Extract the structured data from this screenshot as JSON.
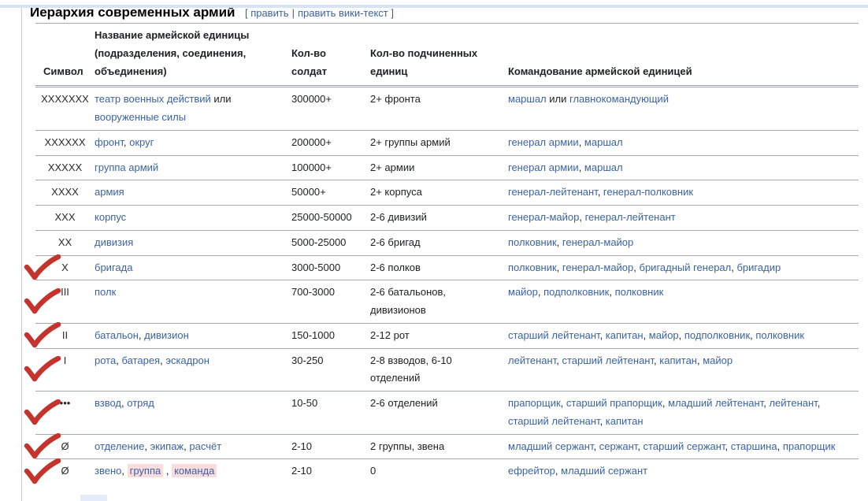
{
  "page": {
    "title": "Иерархия современных армий",
    "edit": {
      "open": "[",
      "edit_label": "править",
      "separator": "|",
      "edit_source_label": "править вики-текст",
      "close": "]"
    }
  },
  "colors": {
    "link_blue": "#3b63a5",
    "checkmark_red": "#c4342c",
    "highlight_pink": "#fadcdc",
    "row_border": "#a2a9b1",
    "top_strip_blue": "#d8e4f1"
  },
  "table": {
    "headers": {
      "symbol": "Символ",
      "name": "Название армейской единицы (подразделения, соединения, объединения)",
      "soldiers": "Кол-во солдат",
      "subunits": "Кол-во подчиненных единиц",
      "command": "Командование армейской единицей"
    },
    "rows": [
      {
        "symbol": "XXXXXXX",
        "checked": false,
        "name": [
          {
            "t": "l",
            "s": "театр военных действий"
          },
          {
            "t": "p",
            "s": " или "
          },
          {
            "t": "l",
            "s": "вооруженные силы"
          }
        ],
        "soldiers": "300000+",
        "subunits": "2+ фронта",
        "command": [
          {
            "t": "l",
            "s": "маршал"
          },
          {
            "t": "p",
            "s": " или "
          },
          {
            "t": "l",
            "s": "главнокомандующий"
          }
        ]
      },
      {
        "symbol": "XXXXXX",
        "checked": false,
        "name": [
          {
            "t": "l",
            "s": "фронт"
          },
          {
            "t": "p",
            "s": ", "
          },
          {
            "t": "l",
            "s": "округ"
          }
        ],
        "soldiers": "200000+",
        "subunits": "2+ группы армий",
        "command": [
          {
            "t": "l",
            "s": "генерал армии"
          },
          {
            "t": "p",
            "s": ", "
          },
          {
            "t": "l",
            "s": "маршал"
          }
        ]
      },
      {
        "symbol": "XXXXX",
        "checked": false,
        "name": [
          {
            "t": "l",
            "s": "группа армий"
          }
        ],
        "soldiers": "100000+",
        "subunits": "2+ армии",
        "command": [
          {
            "t": "l",
            "s": "генерал армии"
          },
          {
            "t": "p",
            "s": ", "
          },
          {
            "t": "l",
            "s": "маршал"
          }
        ]
      },
      {
        "symbol": "XXXX",
        "checked": false,
        "name": [
          {
            "t": "l",
            "s": "армия"
          }
        ],
        "soldiers": "50000+",
        "subunits": "2+ корпуса",
        "command": [
          {
            "t": "l",
            "s": "генерал-лейтенант"
          },
          {
            "t": "p",
            "s": ", "
          },
          {
            "t": "l",
            "s": "генерал-полковник"
          }
        ]
      },
      {
        "symbol": "XXX",
        "checked": false,
        "name": [
          {
            "t": "l",
            "s": "корпус"
          }
        ],
        "soldiers": "25000-50000",
        "subunits": "2-6 дивизий",
        "command": [
          {
            "t": "l",
            "s": "генерал-майор"
          },
          {
            "t": "p",
            "s": ", "
          },
          {
            "t": "l",
            "s": "генерал-лейтенант"
          }
        ]
      },
      {
        "symbol": "XX",
        "checked": false,
        "name": [
          {
            "t": "l",
            "s": "дивизия"
          }
        ],
        "soldiers": "5000-25000",
        "subunits": "2-6 бригад",
        "command": [
          {
            "t": "l",
            "s": "полковник"
          },
          {
            "t": "p",
            "s": ", "
          },
          {
            "t": "l",
            "s": "генерал-майор"
          }
        ]
      },
      {
        "symbol": "X",
        "checked": true,
        "name": [
          {
            "t": "l",
            "s": "бригада"
          }
        ],
        "soldiers": "3000-5000",
        "subunits": "2-6 полков",
        "command": [
          {
            "t": "l",
            "s": "полковник"
          },
          {
            "t": "p",
            "s": ", "
          },
          {
            "t": "l",
            "s": "генерал-майор"
          },
          {
            "t": "p",
            "s": ", "
          },
          {
            "t": "l",
            "s": "бригадный генерал"
          },
          {
            "t": "p",
            "s": ", "
          },
          {
            "t": "l",
            "s": "бригадир"
          }
        ]
      },
      {
        "symbol": "III",
        "checked": true,
        "name": [
          {
            "t": "l",
            "s": "полк"
          }
        ],
        "soldiers": "700-3000",
        "subunits": "2-6 батальонов, дивизионов",
        "command": [
          {
            "t": "l",
            "s": "майор"
          },
          {
            "t": "p",
            "s": ", "
          },
          {
            "t": "l",
            "s": "подполковник"
          },
          {
            "t": "p",
            "s": ", "
          },
          {
            "t": "l",
            "s": "полковник"
          }
        ]
      },
      {
        "symbol": "II",
        "checked": true,
        "name": [
          {
            "t": "l",
            "s": "батальон"
          },
          {
            "t": "p",
            "s": ", "
          },
          {
            "t": "l",
            "s": "дивизион"
          }
        ],
        "soldiers": "150-1000",
        "subunits": "2-12 рот",
        "command": [
          {
            "t": "l",
            "s": "старший лейтенант"
          },
          {
            "t": "p",
            "s": ", "
          },
          {
            "t": "l",
            "s": "капитан"
          },
          {
            "t": "p",
            "s": ", "
          },
          {
            "t": "l",
            "s": "майор"
          },
          {
            "t": "p",
            "s": ", "
          },
          {
            "t": "l",
            "s": "подполковник"
          },
          {
            "t": "p",
            "s": ", "
          },
          {
            "t": "l",
            "s": "полковник"
          }
        ]
      },
      {
        "symbol": "I",
        "checked": true,
        "name": [
          {
            "t": "l",
            "s": "рота"
          },
          {
            "t": "p",
            "s": ", "
          },
          {
            "t": "l",
            "s": "батарея"
          },
          {
            "t": "p",
            "s": ", "
          },
          {
            "t": "l",
            "s": "эскадрон"
          }
        ],
        "soldiers": "30-250",
        "subunits": "2-8 взводов, 6-10 отделений",
        "command": [
          {
            "t": "l",
            "s": "лейтенант"
          },
          {
            "t": "p",
            "s": ", "
          },
          {
            "t": "l",
            "s": "старший лейтенант"
          },
          {
            "t": "p",
            "s": ", "
          },
          {
            "t": "l",
            "s": "капитан"
          },
          {
            "t": "p",
            "s": ", "
          },
          {
            "t": "l",
            "s": "майор"
          }
        ]
      },
      {
        "symbol": "•••",
        "checked": true,
        "name": [
          {
            "t": "l",
            "s": "взвод"
          },
          {
            "t": "p",
            "s": ", "
          },
          {
            "t": "l",
            "s": "отряд"
          }
        ],
        "soldiers": "10-50",
        "subunits": "2-6 отделений",
        "command": [
          {
            "t": "l",
            "s": "прапорщик"
          },
          {
            "t": "p",
            "s": ", "
          },
          {
            "t": "l",
            "s": "старший прапорщик"
          },
          {
            "t": "p",
            "s": ", "
          },
          {
            "t": "l",
            "s": "младший лейтенант"
          },
          {
            "t": "p",
            "s": ", "
          },
          {
            "t": "l",
            "s": "лейтенант"
          },
          {
            "t": "p",
            "s": ", "
          },
          {
            "t": "l",
            "s": "старший лейтенант"
          },
          {
            "t": "p",
            "s": ", "
          },
          {
            "t": "l",
            "s": "капитан"
          }
        ]
      },
      {
        "symbol": "Ø",
        "checked": true,
        "name": [
          {
            "t": "l",
            "s": "отделение"
          },
          {
            "t": "p",
            "s": ", "
          },
          {
            "t": "l",
            "s": "экипаж"
          },
          {
            "t": "p",
            "s": ", "
          },
          {
            "t": "l",
            "s": "расчёт"
          }
        ],
        "soldiers": "2-10",
        "subunits": "2 группы, звена",
        "command": [
          {
            "t": "l",
            "s": "младший сержант"
          },
          {
            "t": "p",
            "s": ", "
          },
          {
            "t": "l",
            "s": "сержант"
          },
          {
            "t": "p",
            "s": ", "
          },
          {
            "t": "l",
            "s": "старший сержант"
          },
          {
            "t": "p",
            "s": ", "
          },
          {
            "t": "l",
            "s": "старшина"
          },
          {
            "t": "p",
            "s": ", "
          },
          {
            "t": "l",
            "s": "прапорщик"
          }
        ]
      },
      {
        "symbol": "Ø",
        "checked": true,
        "name": [
          {
            "t": "l",
            "s": "звено"
          },
          {
            "t": "p",
            "s": ", "
          },
          {
            "t": "h",
            "s": "группа"
          },
          {
            "t": "p",
            "s": " , "
          },
          {
            "t": "h",
            "s": "команда"
          }
        ],
        "soldiers": "2-10",
        "subunits": "0",
        "command": [
          {
            "t": "l",
            "s": "ефрейтор"
          },
          {
            "t": "p",
            "s": ", "
          },
          {
            "t": "l",
            "s": "младший сержант"
          }
        ]
      }
    ]
  }
}
